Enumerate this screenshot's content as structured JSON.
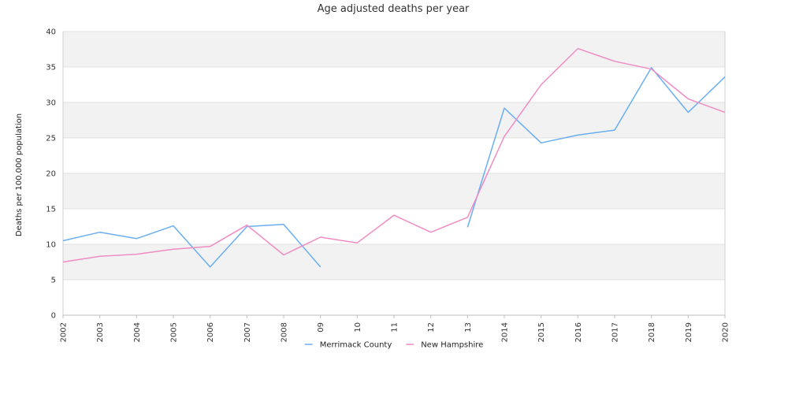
{
  "chart_data": {
    "type": "line",
    "title": "Age adjusted deaths per year",
    "xlabel": "",
    "ylabel": "Deaths per 100,000 population",
    "categories": [
      "2002",
      "2003",
      "2004",
      "2005",
      "2006",
      "2007",
      "2008",
      "09",
      "10",
      "11",
      "12",
      "13",
      "2014",
      "2015",
      "2016",
      "2017",
      "2018",
      "2019",
      "2020"
    ],
    "ylim": [
      0,
      40
    ],
    "yticks": [
      0,
      5,
      10,
      15,
      20,
      25,
      30,
      35,
      40
    ],
    "grid": "horizontal bands",
    "legend": "bottom-center",
    "series": [
      {
        "name": "Merrimack County",
        "color": "#6aaef0",
        "values": [
          10.5,
          11.7,
          10.8,
          12.6,
          6.8,
          12.5,
          12.8,
          6.8,
          null,
          null,
          null,
          12.4,
          29.2,
          24.3,
          25.4,
          26.1,
          34.9,
          28.6,
          33.6
        ]
      },
      {
        "name": "New Hampshire",
        "color": "#f08cc4",
        "values": [
          7.5,
          8.3,
          8.6,
          9.3,
          9.7,
          12.7,
          8.5,
          11.0,
          10.2,
          14.1,
          11.7,
          13.8,
          25.2,
          32.5,
          37.6,
          35.8,
          34.7,
          30.5,
          28.6
        ]
      }
    ]
  }
}
